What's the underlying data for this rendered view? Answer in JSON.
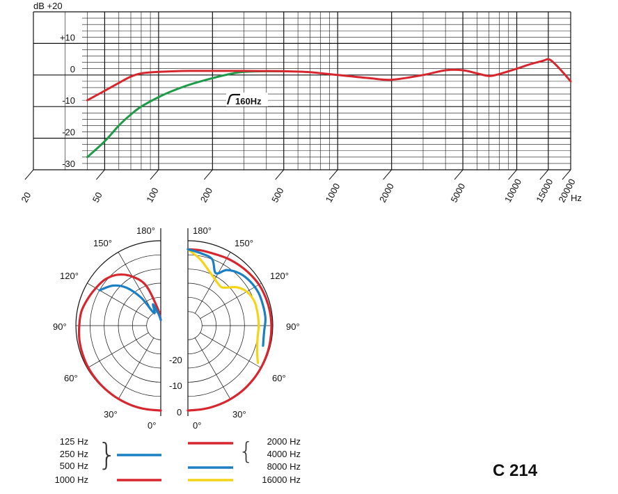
{
  "colors": {
    "red": "#d7262e",
    "green": "#1f9a48",
    "blue": "#1b7fc4",
    "yellow": "#f5d316",
    "grid": "#111111"
  },
  "freq_chart": {
    "type": "line",
    "xscale": "log",
    "xlim": [
      20,
      20000
    ],
    "ylim": [
      -30,
      20
    ],
    "y_unit": "dB",
    "x_unit": "Hz",
    "y_ticks": [
      {
        "v": 20,
        "label": "dB  +20"
      },
      {
        "v": 10,
        "label": "+10"
      },
      {
        "v": 0,
        "label": "0"
      },
      {
        "v": -10,
        "label": "-10"
      },
      {
        "v": -20,
        "label": "-20"
      },
      {
        "v": -30,
        "label": "-30"
      }
    ],
    "x_ticks": [
      {
        "v": 20,
        "label": "20"
      },
      {
        "v": 50,
        "label": "50"
      },
      {
        "v": 100,
        "label": "100"
      },
      {
        "v": 200,
        "label": "200"
      },
      {
        "v": 500,
        "label": "500"
      },
      {
        "v": 1000,
        "label": "1000"
      },
      {
        "v": 2000,
        "label": "2000"
      },
      {
        "v": 5000,
        "label": "5000"
      },
      {
        "v": 10000,
        "label": "10000"
      },
      {
        "v": 15000,
        "label": "15000"
      },
      {
        "v": 20000,
        "label": "20000"
      }
    ],
    "annotation": "160Hz",
    "series": [
      {
        "color_key": "red",
        "points": [
          [
            40,
            -8
          ],
          [
            50,
            -5
          ],
          [
            60,
            -2.5
          ],
          [
            70,
            -0.5
          ],
          [
            80,
            0.5
          ],
          [
            100,
            1
          ],
          [
            150,
            1.3
          ],
          [
            200,
            1.3
          ],
          [
            300,
            1.3
          ],
          [
            500,
            1.2
          ],
          [
            700,
            0.9
          ],
          [
            1000,
            0
          ],
          [
            1500,
            -1
          ],
          [
            2000,
            -1.5
          ],
          [
            3000,
            0
          ],
          [
            4000,
            1.5
          ],
          [
            5000,
            1.5
          ],
          [
            6000,
            0.5
          ],
          [
            7000,
            -0.3
          ],
          [
            8000,
            0.3
          ],
          [
            10000,
            2
          ],
          [
            12000,
            3.5
          ],
          [
            14000,
            4.5
          ],
          [
            15000,
            5
          ],
          [
            16000,
            4
          ],
          [
            18000,
            1
          ],
          [
            20000,
            -2
          ]
        ]
      },
      {
        "color_key": "green",
        "points": [
          [
            40,
            -26
          ],
          [
            50,
            -21
          ],
          [
            60,
            -16
          ],
          [
            70,
            -12.5
          ],
          [
            80,
            -10
          ],
          [
            100,
            -7
          ],
          [
            120,
            -5
          ],
          [
            150,
            -3
          ],
          [
            200,
            -1
          ],
          [
            250,
            0.3
          ],
          [
            300,
            1
          ],
          [
            400,
            1.2
          ],
          [
            500,
            1.2
          ]
        ]
      }
    ]
  },
  "polar": {
    "angle_labels": {
      "a180": "180°",
      "a150": "150°",
      "a120": "120°",
      "a90": "90°",
      "a60": "60°",
      "a30": "30°",
      "a0": "0°"
    },
    "db_labels": [
      "-20",
      "-10",
      "0"
    ],
    "curves": {
      "left_red": [
        [
          180,
          -28
        ],
        [
          170,
          -24
        ],
        [
          160,
          -15
        ],
        [
          150,
          -10
        ],
        [
          140,
          -6.5
        ],
        [
          130,
          -4.5
        ],
        [
          120,
          -3.5
        ],
        [
          110,
          -2.5
        ],
        [
          100,
          -1.5
        ],
        [
          90,
          -1.2
        ],
        [
          80,
          -0.8
        ],
        [
          70,
          -0.6
        ],
        [
          60,
          -0.4
        ],
        [
          50,
          -0.3
        ],
        [
          40,
          -0.2
        ],
        [
          30,
          -0.1
        ],
        [
          20,
          0
        ],
        [
          10,
          0
        ],
        [
          0,
          0
        ]
      ],
      "left_blue": [
        [
          180,
          -28
        ],
        [
          170,
          -26
        ],
        [
          160,
          -22
        ],
        [
          152,
          -25
        ],
        [
          145,
          -18
        ],
        [
          138,
          -12
        ],
        [
          130,
          -8
        ],
        [
          120,
          -5
        ]
      ],
      "right_red": [
        [
          180,
          -3
        ],
        [
          170,
          -3
        ],
        [
          160,
          -3
        ],
        [
          150,
          -2.5
        ],
        [
          140,
          -2
        ],
        [
          130,
          -1.5
        ],
        [
          120,
          -1
        ],
        [
          110,
          -0.8
        ],
        [
          100,
          -0.6
        ],
        [
          90,
          -0.5
        ],
        [
          80,
          -0.4
        ],
        [
          70,
          -0.3
        ],
        [
          60,
          -0.2
        ],
        [
          50,
          -0.1
        ],
        [
          40,
          0
        ],
        [
          30,
          0
        ],
        [
          20,
          0
        ],
        [
          10,
          0
        ],
        [
          0,
          0
        ]
      ],
      "right_blue": [
        [
          180,
          -3
        ],
        [
          170,
          -4
        ],
        [
          160,
          -5
        ],
        [
          152,
          -9
        ],
        [
          145,
          -6
        ],
        [
          135,
          -4
        ],
        [
          125,
          -3
        ],
        [
          115,
          -2.5
        ],
        [
          105,
          -2.5
        ],
        [
          95,
          -2.5
        ],
        [
          85,
          -3
        ],
        [
          75,
          -2.5
        ]
      ],
      "right_yellow": [
        [
          180,
          -3
        ],
        [
          170,
          -6
        ],
        [
          160,
          -9
        ],
        [
          150,
          -11
        ],
        [
          140,
          -12
        ],
        [
          135,
          -11
        ],
        [
          128,
          -8
        ],
        [
          120,
          -6
        ],
        [
          110,
          -5
        ],
        [
          100,
          -5
        ],
        [
          90,
          -5
        ],
        [
          80,
          -5
        ],
        [
          70,
          -4
        ],
        [
          62,
          -2
        ]
      ]
    }
  },
  "legend": {
    "left_lines": [
      "125 Hz",
      "250 Hz",
      "500 Hz"
    ],
    "left_last": "1000 Hz",
    "right_lines": [
      "2000 Hz",
      "4000 Hz",
      "8000 Hz"
    ],
    "right_last": "16000 Hz",
    "brace": "{",
    "brace_close": "}"
  },
  "model": "C 214"
}
